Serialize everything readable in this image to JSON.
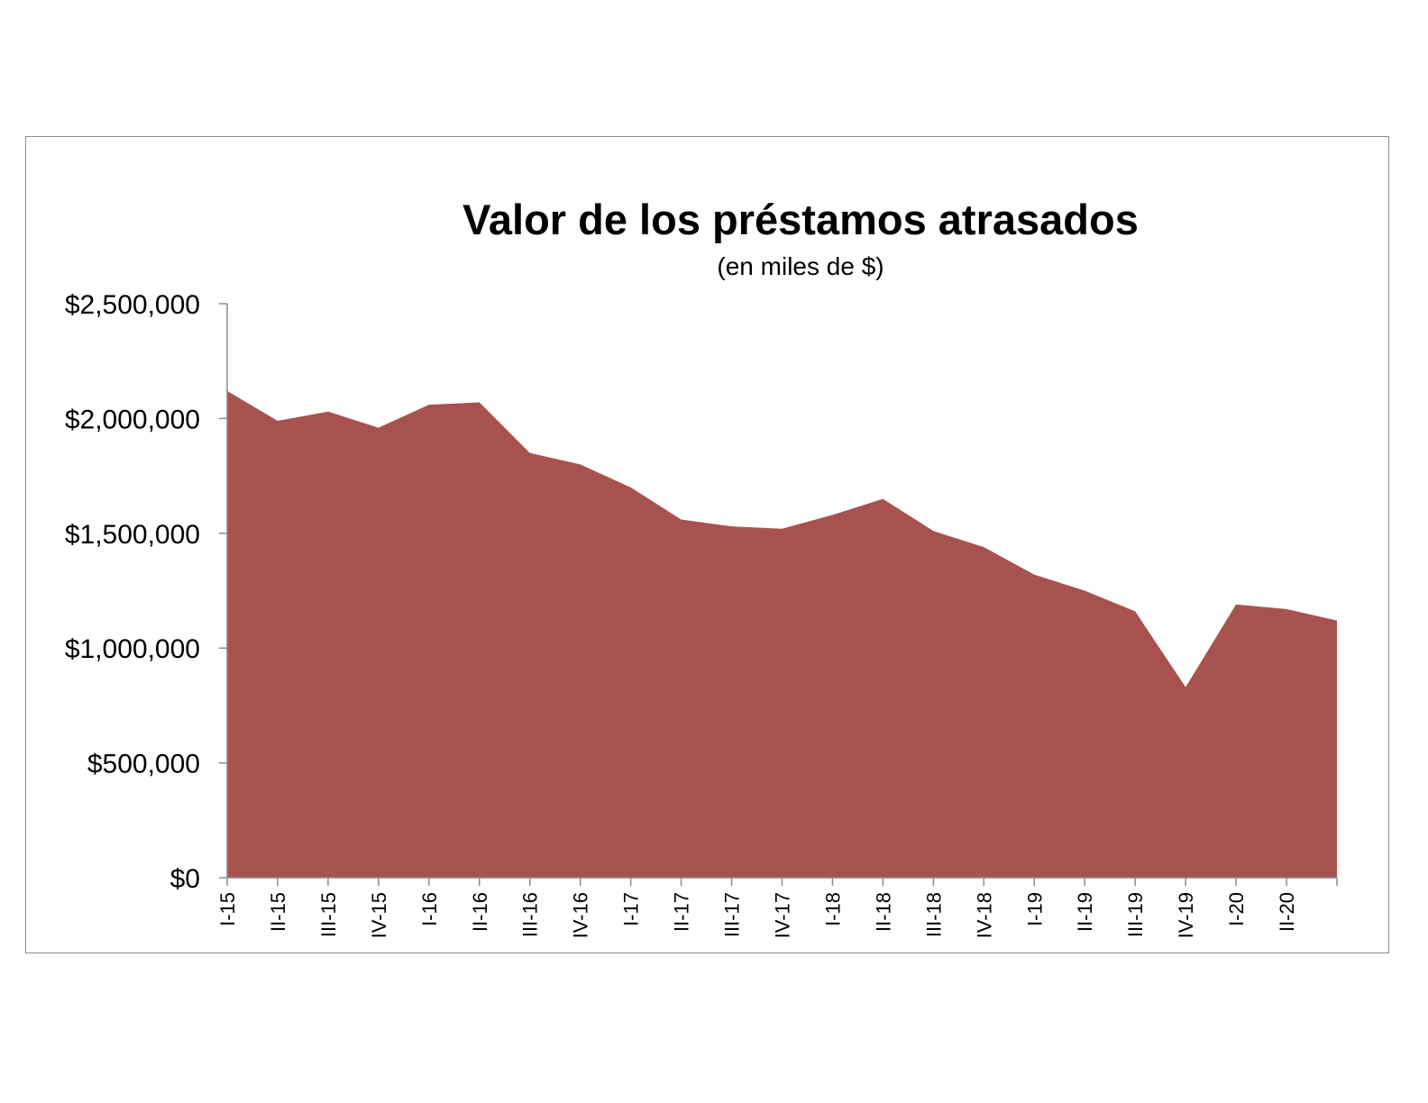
{
  "chart_data": {
    "type": "area",
    "title": "Valor de los préstamos atrasados",
    "subtitle": "(en miles de $)",
    "xlabel": "",
    "ylabel": "",
    "ylim": [
      0,
      2500000
    ],
    "yticks": [
      0,
      500000,
      1000000,
      1500000,
      2000000,
      2500000
    ],
    "ytick_labels": [
      "$0",
      "$500,000",
      "$1,000,000",
      "$1,500,000",
      "$2,000,000",
      "$2,500,000"
    ],
    "categories": [
      "I-15",
      "II-15",
      "III-15",
      "IV-15",
      "I-16",
      "II-16",
      "III-16",
      "IV-16",
      "I-17",
      "II-17",
      "III-17",
      "IV-17",
      "I-18",
      "II-18",
      "III-18",
      "IV-18",
      "I-19",
      "II-19",
      "III-19",
      "IV-19",
      "I-20",
      "II-20",
      ""
    ],
    "values": [
      2120000,
      1990000,
      2030000,
      1960000,
      2060000,
      2070000,
      1850000,
      1800000,
      1700000,
      1560000,
      1530000,
      1520000,
      1580000,
      1650000,
      1510000,
      1440000,
      1320000,
      1250000,
      1160000,
      830000,
      1190000,
      1170000,
      1120000
    ],
    "fill_color": "#a85250",
    "grid": false,
    "legend": "none"
  }
}
